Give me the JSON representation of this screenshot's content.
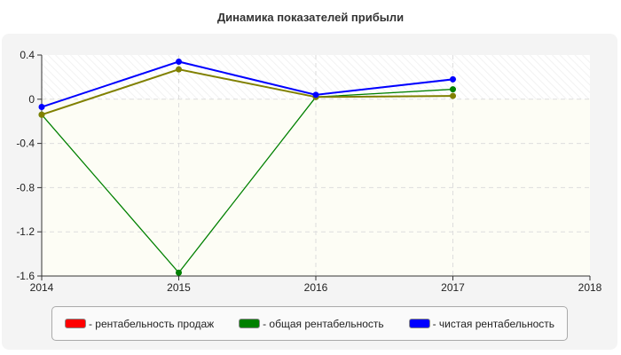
{
  "chart_data": {
    "type": "line",
    "title": "Динамика показателей прибыли",
    "x": [
      2014,
      2015,
      2016,
      2017
    ],
    "xlim": [
      2014,
      2018
    ],
    "ylim": [
      -1.6,
      0.4
    ],
    "xticks": [
      "2014",
      "2015",
      "2016",
      "2017",
      "2018"
    ],
    "yticks": [
      "0.4",
      "0",
      "-0.4",
      "-0.8",
      "-1.2",
      "-1.6"
    ],
    "grid": true,
    "legend_position": "bottom",
    "series": [
      {
        "name": "- рентабельность продаж",
        "color": "#ff0000",
        "line_color": "#808000",
        "values": [
          -0.14,
          0.27,
          0.02,
          0.03
        ]
      },
      {
        "name": "- общая рентабельность",
        "color": "#008000",
        "values": [
          -0.14,
          -1.57,
          0.02,
          0.09
        ]
      },
      {
        "name": "- чистая рентабельность",
        "color": "#0000ff",
        "values": [
          -0.07,
          0.34,
          0.04,
          0.18
        ]
      }
    ]
  }
}
